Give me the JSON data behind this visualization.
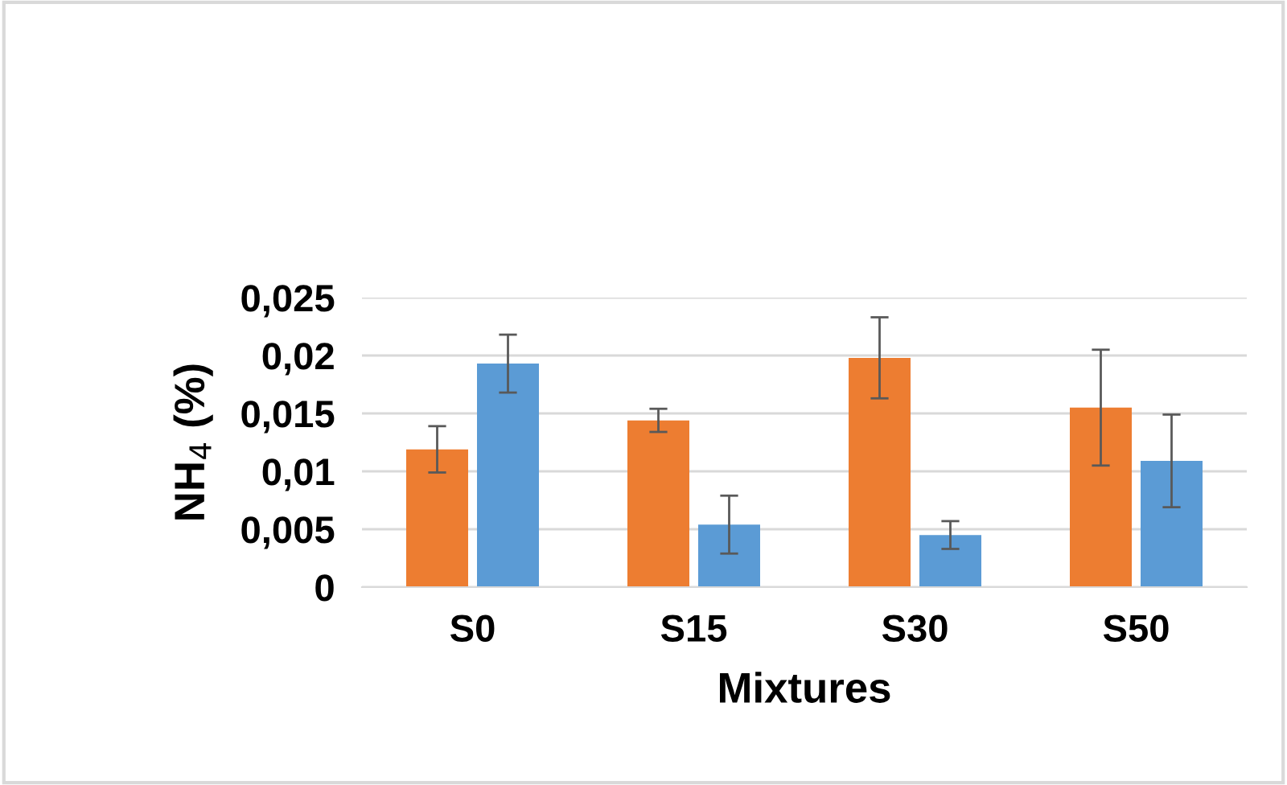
{
  "chart_data": {
    "type": "bar",
    "xlabel": "Mixtures",
    "ylabel": "NH$_{4}$ (%)",
    "categories": [
      "S0",
      "S15",
      "S30",
      "S50"
    ],
    "series": [
      {
        "color": "#ed7d31",
        "values": [
          0.0119,
          0.0144,
          0.0198,
          0.0155
        ],
        "errors": [
          0.002,
          0.001,
          0.0035,
          0.005
        ]
      },
      {
        "color": "#5b9bd5",
        "values": [
          0.0193,
          0.0054,
          0.0045,
          0.0109
        ],
        "errors": [
          0.0025,
          0.0025,
          0.0012,
          0.004
        ]
      }
    ],
    "ylim": [
      0,
      0.025
    ],
    "yticks": [
      {
        "value": 0,
        "label": "0"
      },
      {
        "value": 0.005,
        "label": "0,005"
      },
      {
        "value": 0.01,
        "label": "0,01"
      },
      {
        "value": 0.015,
        "label": "0,015"
      },
      {
        "value": 0.02,
        "label": "0,02"
      },
      {
        "value": 0.025,
        "label": "0,025"
      }
    ],
    "grid": "y"
  }
}
